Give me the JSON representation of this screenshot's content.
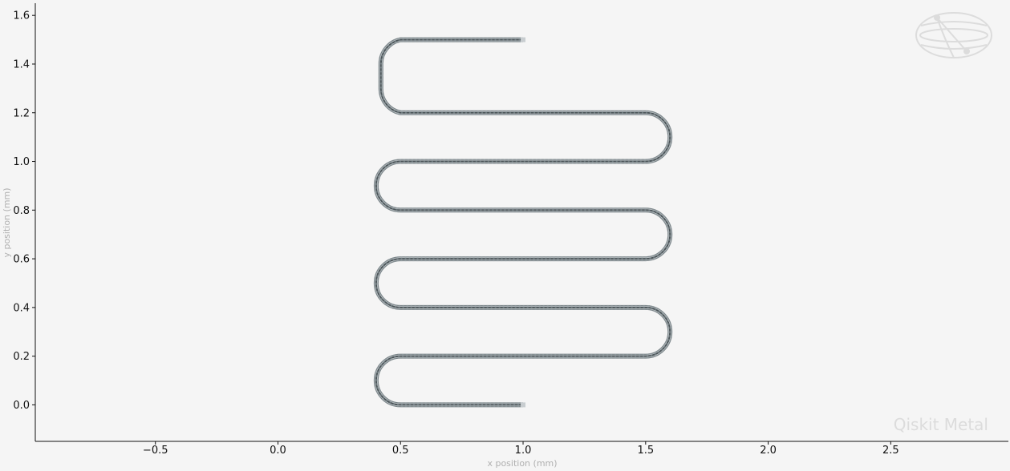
{
  "chart_data": {
    "type": "line",
    "title": "",
    "xlabel": "x position (mm)",
    "ylabel": "y position (mm)",
    "xlim": [
      -0.99,
      2.98
    ],
    "ylim": [
      -0.15,
      1.65
    ],
    "xticks": [
      -0.5,
      0.0,
      0.5,
      1.0,
      1.5,
      2.0,
      2.5
    ],
    "xtick_labels": [
      "−0.5",
      "0.0",
      "0.5",
      "1.0",
      "1.5",
      "2.0",
      "2.5"
    ],
    "yticks": [
      0.0,
      0.2,
      0.4,
      0.6,
      0.8,
      1.0,
      1.2,
      1.4,
      1.6
    ],
    "ytick_labels": [
      "0.0",
      "0.2",
      "0.4",
      "0.6",
      "0.8",
      "1.0",
      "1.2",
      "1.4",
      "1.6"
    ],
    "grid": false,
    "series": [
      {
        "style": "meander",
        "turn_radius": 0.1,
        "path": [
          {
            "kind": "line",
            "from": [
              1.0,
              0.0
            ],
            "to": [
              0.5,
              0.0
            ]
          },
          {
            "kind": "arc",
            "to": [
              0.5,
              0.2
            ],
            "side": "left"
          },
          {
            "kind": "line",
            "to": [
              1.5,
              0.2
            ]
          },
          {
            "kind": "arc",
            "to": [
              1.5,
              0.4
            ],
            "side": "right"
          },
          {
            "kind": "line",
            "to": [
              0.5,
              0.4
            ]
          },
          {
            "kind": "arc",
            "to": [
              0.5,
              0.6
            ],
            "side": "left"
          },
          {
            "kind": "line",
            "to": [
              1.5,
              0.6
            ]
          },
          {
            "kind": "arc",
            "to": [
              1.5,
              0.8
            ],
            "side": "right"
          },
          {
            "kind": "line",
            "to": [
              0.5,
              0.8
            ]
          },
          {
            "kind": "arc",
            "to": [
              0.5,
              1.0
            ],
            "side": "left"
          },
          {
            "kind": "line",
            "to": [
              1.5,
              1.0
            ]
          },
          {
            "kind": "arc",
            "to": [
              1.5,
              1.2
            ],
            "side": "right"
          },
          {
            "kind": "line",
            "to": [
              0.5,
              1.2
            ]
          },
          {
            "kind": "arc",
            "to": [
              0.5,
              1.5
            ],
            "side": "left",
            "straight": [
              0.42,
              1.3,
              1.4
            ]
          },
          {
            "kind": "line",
            "to": [
              1.0,
              1.5
            ]
          }
        ]
      }
    ],
    "colors": {
      "background": "#f5f5f5",
      "trace_outer": "#7a8488",
      "trace_inner": "#4a5458",
      "axis": "#111111"
    },
    "watermark": "Qiskit Metal",
    "logo": "qiskit-globe-logo"
  }
}
